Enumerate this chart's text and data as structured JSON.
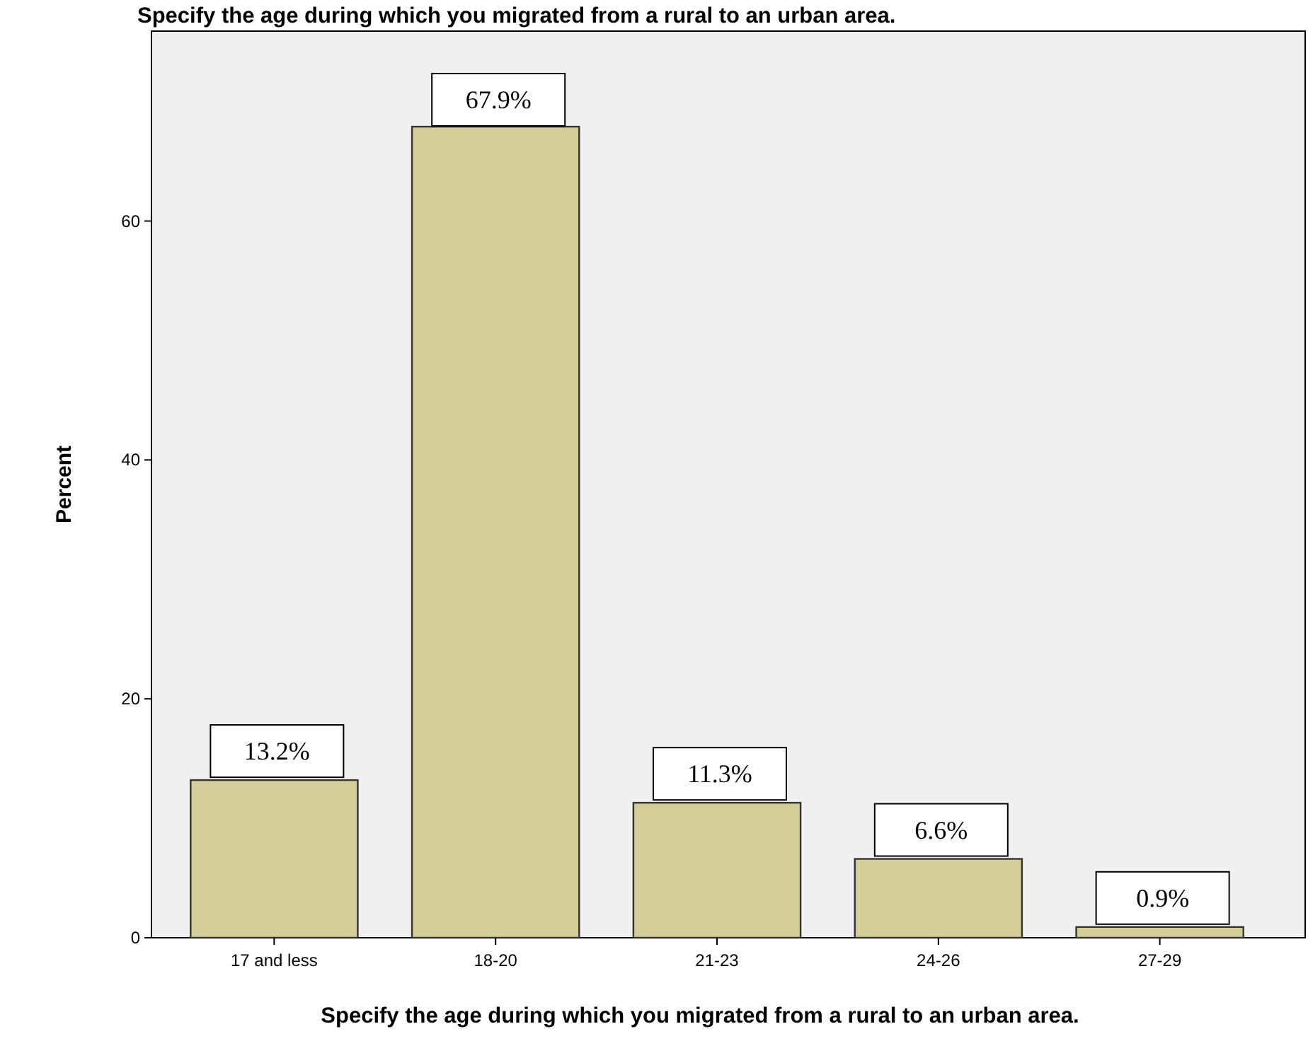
{
  "chart_data": {
    "type": "bar",
    "title": "Specify the age during which you migrated from a rural to an urban area.",
    "xlabel": "Specify the age during which you migrated from a rural to an urban area.",
    "ylabel": "Percent",
    "categories": [
      "17 and less",
      "18-20",
      "21-23",
      "24-26",
      "27-29"
    ],
    "values": [
      13.2,
      67.9,
      11.3,
      6.6,
      0.9
    ],
    "value_labels": [
      "13.2%",
      "67.9%",
      "11.3%",
      "6.6%",
      "0.9%"
    ],
    "color": "#d3ce97",
    "ylim": [
      0,
      75.9
    ],
    "yticks": [
      0,
      20,
      40,
      60
    ],
    "grid": false
  }
}
